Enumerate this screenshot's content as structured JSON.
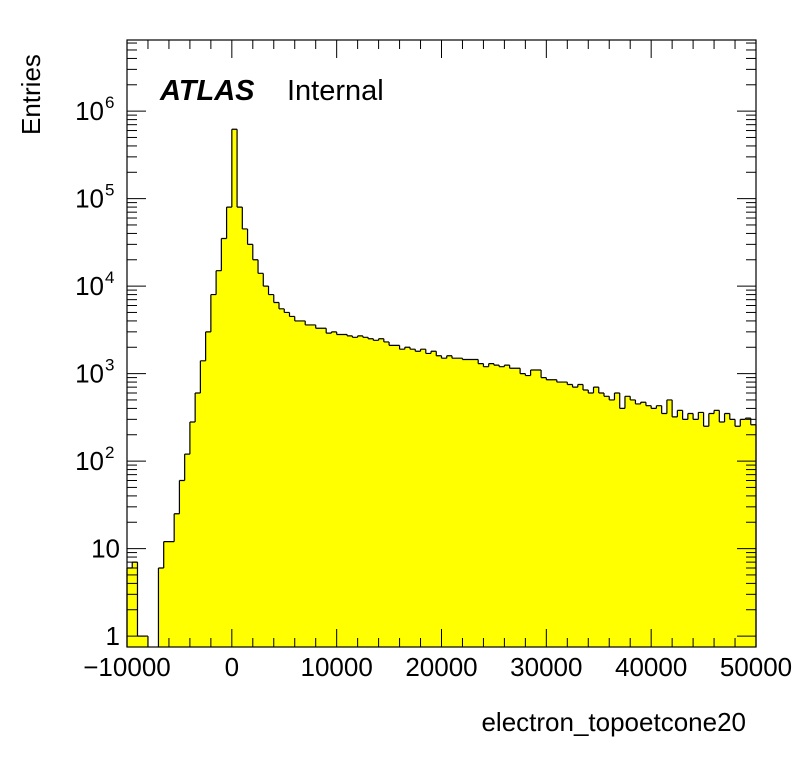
{
  "chart_data": {
    "type": "histogram",
    "title": "",
    "xlabel": "electron_topoetcone20",
    "ylabel": "Entries",
    "xlim": [
      -10000,
      50000
    ],
    "ylim": [
      0.75,
      6500000
    ],
    "log_y": true,
    "bin_width": 500,
    "bin_start": -10000,
    "fill_color": "#ffff00",
    "line_color": "#000000",
    "label_atlas": "ATLAS",
    "label_status": "Internal",
    "x_ticks": [
      {
        "value": -10000,
        "label": "−10000"
      },
      {
        "value": 0,
        "label": "0"
      },
      {
        "value": 10000,
        "label": "10000"
      },
      {
        "value": 20000,
        "label": "20000"
      },
      {
        "value": 30000,
        "label": "30000"
      },
      {
        "value": 40000,
        "label": "40000"
      },
      {
        "value": 50000,
        "label": "50000"
      }
    ],
    "y_ticks": [
      {
        "value": 1,
        "label": "1"
      },
      {
        "value": 10,
        "label": "10"
      },
      {
        "value": 100,
        "label": "10",
        "sup": "2"
      },
      {
        "value": 1000,
        "label": "10",
        "sup": "3"
      },
      {
        "value": 10000,
        "label": "10",
        "sup": "4"
      },
      {
        "value": 100000,
        "label": "10",
        "sup": "5"
      },
      {
        "value": 1000000,
        "label": "10",
        "sup": "6"
      }
    ],
    "values": [
      6,
      7,
      1,
      1,
      0,
      0,
      6,
      12,
      12,
      25,
      60,
      120,
      280,
      600,
      1400,
      3000,
      8000,
      15000,
      35000,
      80000,
      620000,
      80000,
      45000,
      30000,
      20000,
      14000,
      10000,
      8000,
      6500,
      5500,
      5000,
      4500,
      4000,
      4000,
      3600,
      3600,
      3300,
      3300,
      2900,
      3000,
      2800,
      2800,
      2700,
      2600,
      2700,
      2600,
      2500,
      2400,
      2500,
      2300,
      2100,
      2100,
      1900,
      2000,
      1900,
      1800,
      1900,
      1700,
      1800,
      1600,
      1500,
      1600,
      1500,
      1500,
      1450,
      1450,
      1450,
      1300,
      1200,
      1300,
      1250,
      1200,
      1250,
      1150,
      1150,
      1000,
      950,
      1100,
      1100,
      900,
      850,
      850,
      800,
      800,
      750,
      700,
      750,
      650,
      600,
      700,
      600,
      550,
      500,
      600,
      400,
      550,
      500,
      450,
      470,
      430,
      400,
      430,
      350,
      500,
      320,
      380,
      300,
      350,
      300,
      360,
      250,
      350,
      380,
      280,
      350,
      300,
      250,
      300,
      310,
      260
    ]
  }
}
